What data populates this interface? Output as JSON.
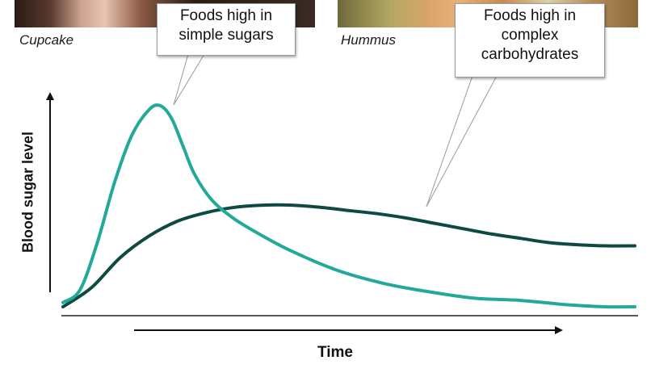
{
  "photos": {
    "cupcake_caption": "Cupcake",
    "hummus_caption": "Hummus"
  },
  "callouts": {
    "simple_line1": "Foods high in",
    "simple_line2": "simple sugars",
    "complex_line1": "Foods high in",
    "complex_line2": "complex",
    "complex_line3": "carbohydrates"
  },
  "colors": {
    "simple_sugars_curve": "#22a99a",
    "complex_carbs_curve": "#0e4a42",
    "axis": "#111111"
  },
  "chart_data": {
    "type": "line",
    "xlabel": "Time",
    "ylabel": "Blood sugar level",
    "x_ticks": false,
    "y_ticks": false,
    "xlim": [
      0,
      100
    ],
    "ylim": [
      0,
      100
    ],
    "series": [
      {
        "name": "Foods high in simple sugars",
        "x": [
          0,
          3,
          6,
          9,
          12,
          15,
          17,
          19,
          21,
          23,
          26,
          30,
          35,
          40,
          48,
          56,
          64,
          72,
          80,
          88,
          95,
          100
        ],
        "y": [
          2,
          8,
          30,
          58,
          80,
          92,
          94,
          88,
          75,
          62,
          50,
          41,
          33,
          26,
          17,
          11,
          7,
          4,
          3,
          1,
          0,
          0
        ]
      },
      {
        "name": "Foods high in complex carbohydrates",
        "x": [
          0,
          5,
          10,
          15,
          20,
          25,
          30,
          35,
          40,
          45,
          50,
          55,
          60,
          65,
          70,
          75,
          80,
          85,
          90,
          95,
          100
        ],
        "y": [
          0,
          9,
          23,
          33,
          40,
          44,
          46.5,
          47.5,
          47.5,
          46.5,
          45,
          43.5,
          41.5,
          39,
          36.5,
          34,
          32,
          30,
          29,
          28.5,
          28.5
        ]
      }
    ]
  }
}
